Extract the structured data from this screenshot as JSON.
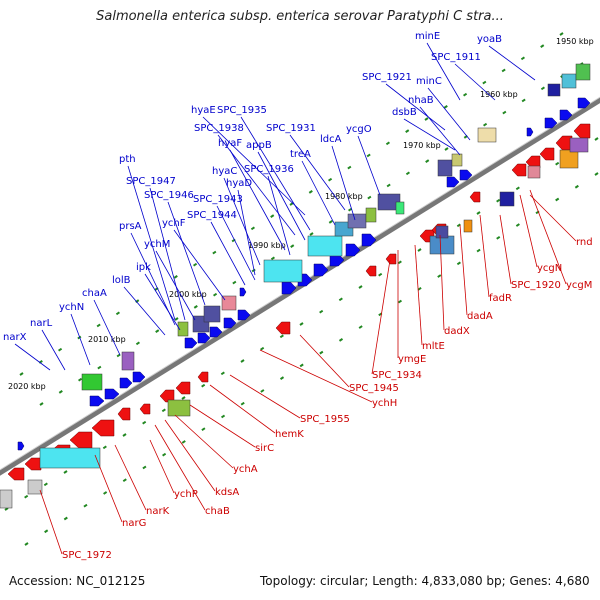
{
  "title": "Salmonella enterica subsp. enterica serovar Paratyphi C stra...",
  "footer": {
    "accession": "Accession: NC_012125",
    "summary": "Topology: circular; Length: 4,833,080 bp; Genes: 4,680"
  },
  "colors": {
    "forward_label": "#0000cc",
    "reverse_label": "#cc0000",
    "forward_arrow": "#0a0af0",
    "reverse_arrow": "#ee1111",
    "backbone": "#777777",
    "tick": "#228822"
  },
  "ticks": [
    "1950 kbp",
    "1960 kbp",
    "1970 kbp",
    "1980 kbp",
    "1990 kbp",
    "2000 kbp",
    "2010 kbp",
    "2020 kbp"
  ],
  "forward_genes": [
    "minE",
    "yoaB",
    "SPC_1911",
    "SPC_1921",
    "minC",
    "nhaB",
    "dsbB",
    "hyaE",
    "SPC_1935",
    "SPC_1938",
    "SPC_1931",
    "ldcA",
    "ycgO",
    "hyaF",
    "appB",
    "treA",
    "hyaC",
    "SPC_1936",
    "hyaD",
    "pth",
    "SPC_1947",
    "SPC_1946",
    "SPC_1943",
    "SPC_1944",
    "ychF",
    "prsA",
    "ychM",
    "ipk",
    "lolB",
    "chaA",
    "ychN",
    "narL",
    "narX"
  ],
  "reverse_genes": [
    "rnd",
    "ycgN",
    "ycgM",
    "SPC_1920",
    "fadR",
    "dadA",
    "dadX",
    "mltE",
    "ymgE",
    "SPC_1934",
    "SPC_1945",
    "ychH",
    "SPC_1955",
    "hemK",
    "sirC",
    "ychA",
    "kdsA",
    "chaB",
    "ychP",
    "narK",
    "narG",
    "SPC_1972"
  ]
}
